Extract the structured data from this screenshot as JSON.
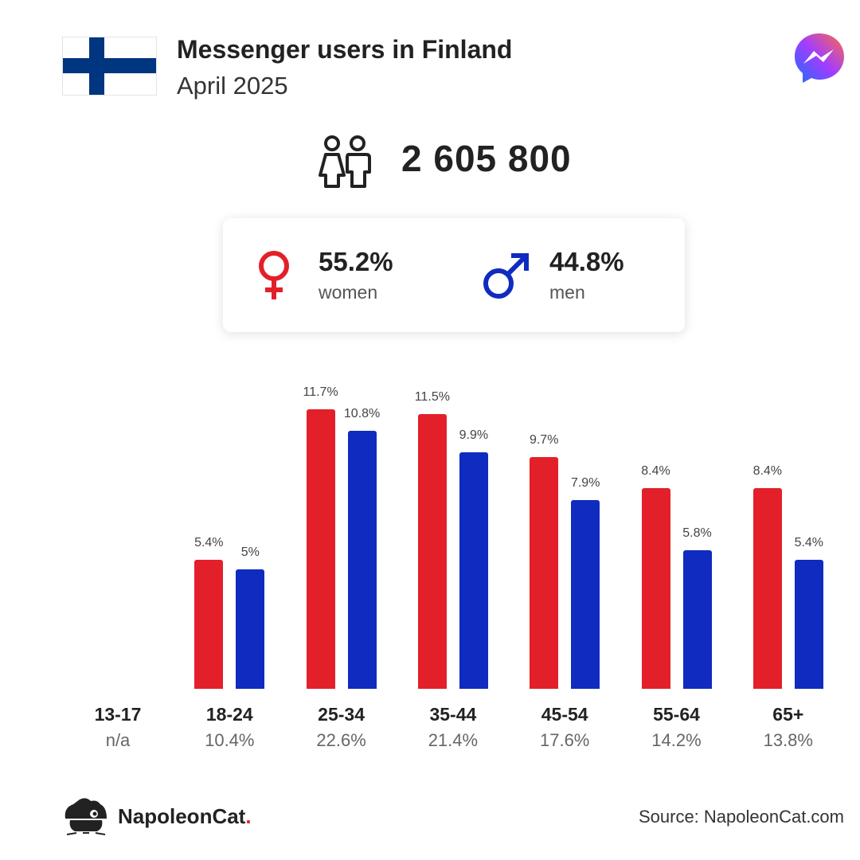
{
  "header": {
    "title": "Messenger users in Finland",
    "subtitle": "April 2025"
  },
  "total_users": "2 605 800",
  "gender": {
    "women": {
      "pct": "55.2%",
      "label": "women",
      "color": "#e3202a"
    },
    "men": {
      "pct": "44.8%",
      "label": "men",
      "color": "#102bbf"
    }
  },
  "chart_data": {
    "type": "bar",
    "categories": [
      "13-17",
      "18-24",
      "25-34",
      "35-44",
      "45-54",
      "55-64",
      "65+"
    ],
    "category_totals": [
      "n/a",
      "10.4%",
      "22.6%",
      "21.4%",
      "17.6%",
      "14.2%",
      "13.8%"
    ],
    "series": [
      {
        "color": "#e3202a",
        "values": [
          null,
          5.4,
          11.7,
          11.5,
          9.7,
          8.4,
          8.4
        ],
        "labels": [
          "",
          "5.4%",
          "11.7%",
          "11.5%",
          "9.7%",
          "8.4%",
          "8.4%"
        ]
      },
      {
        "color": "#102bbf",
        "values": [
          null,
          5,
          10.8,
          9.9,
          7.9,
          5.8,
          5.4
        ],
        "labels": [
          "",
          "5%",
          "10.8%",
          "9.9%",
          "7.9%",
          "5.8%",
          "5.4%"
        ]
      }
    ],
    "title": "",
    "xlabel": "",
    "ylabel": "",
    "grid": false
  },
  "footer": {
    "brand": "NapoleonCat",
    "brand_dot": ".",
    "source": "Source: NapoleonCat.com"
  },
  "icons": {
    "flag": "finland-flag-icon",
    "app": "messenger-logo-icon",
    "users": "users-icon",
    "female": "female-symbol-icon",
    "male": "male-symbol-icon",
    "brand": "napoleoncat-logo-icon"
  },
  "colors": {
    "flag_blue": "#003580",
    "women": "#e3202a",
    "men": "#102bbf"
  }
}
